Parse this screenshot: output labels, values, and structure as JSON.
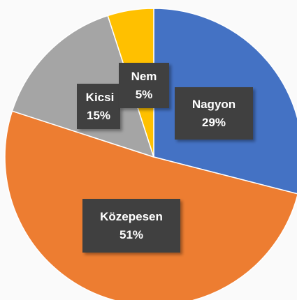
{
  "chart_data": {
    "type": "pie",
    "categories": [
      "Nagyon",
      "Közepesen",
      "Kicsi",
      "Nem"
    ],
    "values": [
      29,
      51,
      15,
      5
    ],
    "value_labels": [
      "29%",
      "51%",
      "15%",
      "5%"
    ],
    "colors": [
      "#4472c4",
      "#ed7d31",
      "#a5a5a5",
      "#ffc000"
    ]
  }
}
